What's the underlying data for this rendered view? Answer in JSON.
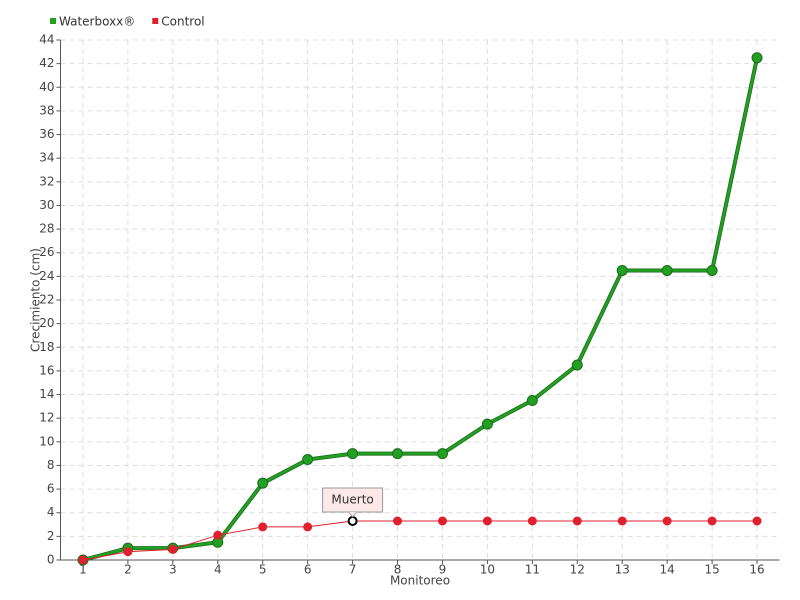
{
  "chart_data": {
    "type": "line",
    "x_label": "Monitoreo",
    "y_label": "Crecimiento (cm)",
    "categories": [
      "1",
      "2",
      "3",
      "4",
      "5",
      "6",
      "7",
      "8",
      "9",
      "10",
      "11",
      "12",
      "13",
      "14",
      "15",
      "16"
    ],
    "series": [
      {
        "name": "Waterboxx®",
        "color": "#22a022",
        "values": [
          0,
          1,
          1,
          1.5,
          6.5,
          8.5,
          9,
          9,
          9,
          11.5,
          13.5,
          16.5,
          24.5,
          24.5,
          24.5,
          42.5
        ]
      },
      {
        "name": "Control",
        "color": "#e0202e",
        "values": [
          0,
          0.7,
          0.9,
          2.1,
          2.8,
          2.8,
          3.3,
          3.3,
          3.3,
          3.3,
          3.3,
          3.3,
          3.3,
          3.3,
          3.3,
          3.3
        ]
      }
    ],
    "annotations": [
      {
        "text": "Muerto",
        "series": "Control",
        "x": "7"
      }
    ],
    "ylim": [
      0,
      44
    ],
    "yticks": [
      0,
      2,
      4,
      6,
      8,
      10,
      12,
      14,
      16,
      18,
      20,
      22,
      24,
      26,
      28,
      30,
      32,
      34,
      36,
      38,
      40,
      42,
      44
    ],
    "grid": true,
    "legend": "top-left"
  }
}
